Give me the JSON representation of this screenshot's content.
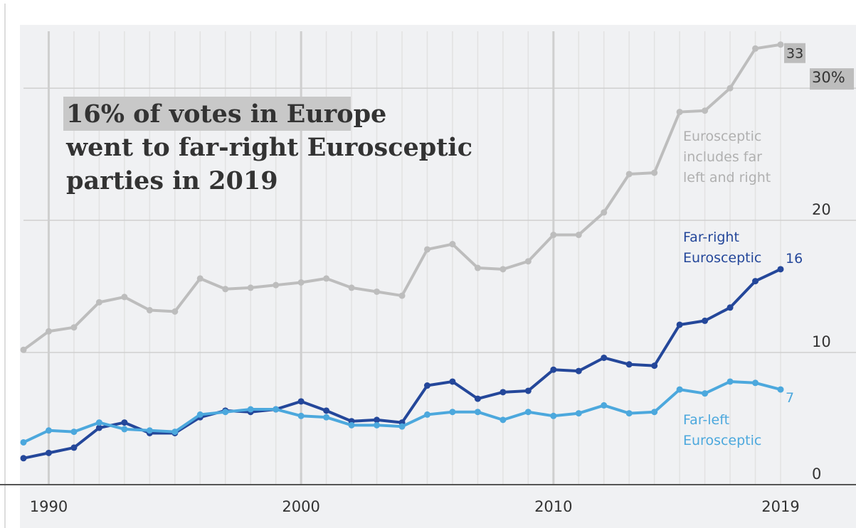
{
  "chart_data": {
    "type": "line",
    "title_lines": [
      "16% of votes in Europe",
      "went to far-right Eurosceptic",
      "parties in 2019"
    ],
    "x": [
      1989,
      1990,
      1991,
      1992,
      1993,
      1994,
      1995,
      1996,
      1997,
      1998,
      1999,
      2000,
      2001,
      2002,
      2003,
      2004,
      2005,
      2006,
      2007,
      2008,
      2009,
      2010,
      2011,
      2012,
      2013,
      2014,
      2015,
      2016,
      2017,
      2018,
      2019
    ],
    "xticks": [
      "1990",
      "2000",
      "2010",
      "2019"
    ],
    "yticks": [
      "0",
      "10",
      "20",
      "30%"
    ],
    "ylim": [
      0,
      33.5
    ],
    "xlim": [
      1989,
      2019
    ],
    "grid": true,
    "series": [
      {
        "name": "Eurosceptic",
        "label_lines": [
          "Eurosceptic",
          "includes far",
          "left and right"
        ],
        "color": "#bdbdbd",
        "values": [
          10.2,
          11.6,
          11.9,
          13.8,
          14.2,
          13.2,
          13.1,
          15.6,
          14.8,
          14.9,
          15.1,
          15.3,
          15.6,
          14.9,
          14.6,
          14.3,
          17.8,
          18.2,
          16.4,
          16.3,
          16.9,
          18.9,
          18.9,
          20.6,
          23.5,
          23.6,
          28.2,
          28.3,
          30.0,
          33.0,
          33.3
        ],
        "end_label": "33"
      },
      {
        "name": "Far-right Eurosceptic",
        "label_lines": [
          "Far-right",
          "Eurosceptic"
        ],
        "color": "#24479a",
        "values": [
          2.0,
          2.4,
          2.8,
          4.3,
          4.7,
          3.9,
          3.9,
          5.1,
          5.6,
          5.5,
          5.7,
          6.3,
          5.6,
          4.8,
          4.9,
          4.7,
          7.5,
          7.8,
          6.5,
          7.0,
          7.1,
          8.7,
          8.6,
          9.6,
          9.1,
          9.0,
          12.1,
          12.4,
          13.4,
          15.4,
          16.3
        ],
        "end_label": "16"
      },
      {
        "name": "Far-left Eurosceptic",
        "label_lines": [
          "Far-left",
          "Eurosceptic"
        ],
        "color": "#4ca8dd",
        "values": [
          3.2,
          4.1,
          4.0,
          4.7,
          4.2,
          4.1,
          4.0,
          5.3,
          5.5,
          5.7,
          5.7,
          5.2,
          5.1,
          4.5,
          4.5,
          4.4,
          5.3,
          5.5,
          5.5,
          4.9,
          5.5,
          5.2,
          5.4,
          6.0,
          5.4,
          5.5,
          7.2,
          6.9,
          7.8,
          7.7,
          7.2
        ],
        "end_label": "7"
      }
    ]
  },
  "colors": {
    "background": "#f0f1f3",
    "grid_major": "#cfcfcf",
    "grid_minor": "#e2e2e2",
    "title_highlight": "#c8c8c8",
    "end_label_highlight": "#bdbdbd"
  }
}
